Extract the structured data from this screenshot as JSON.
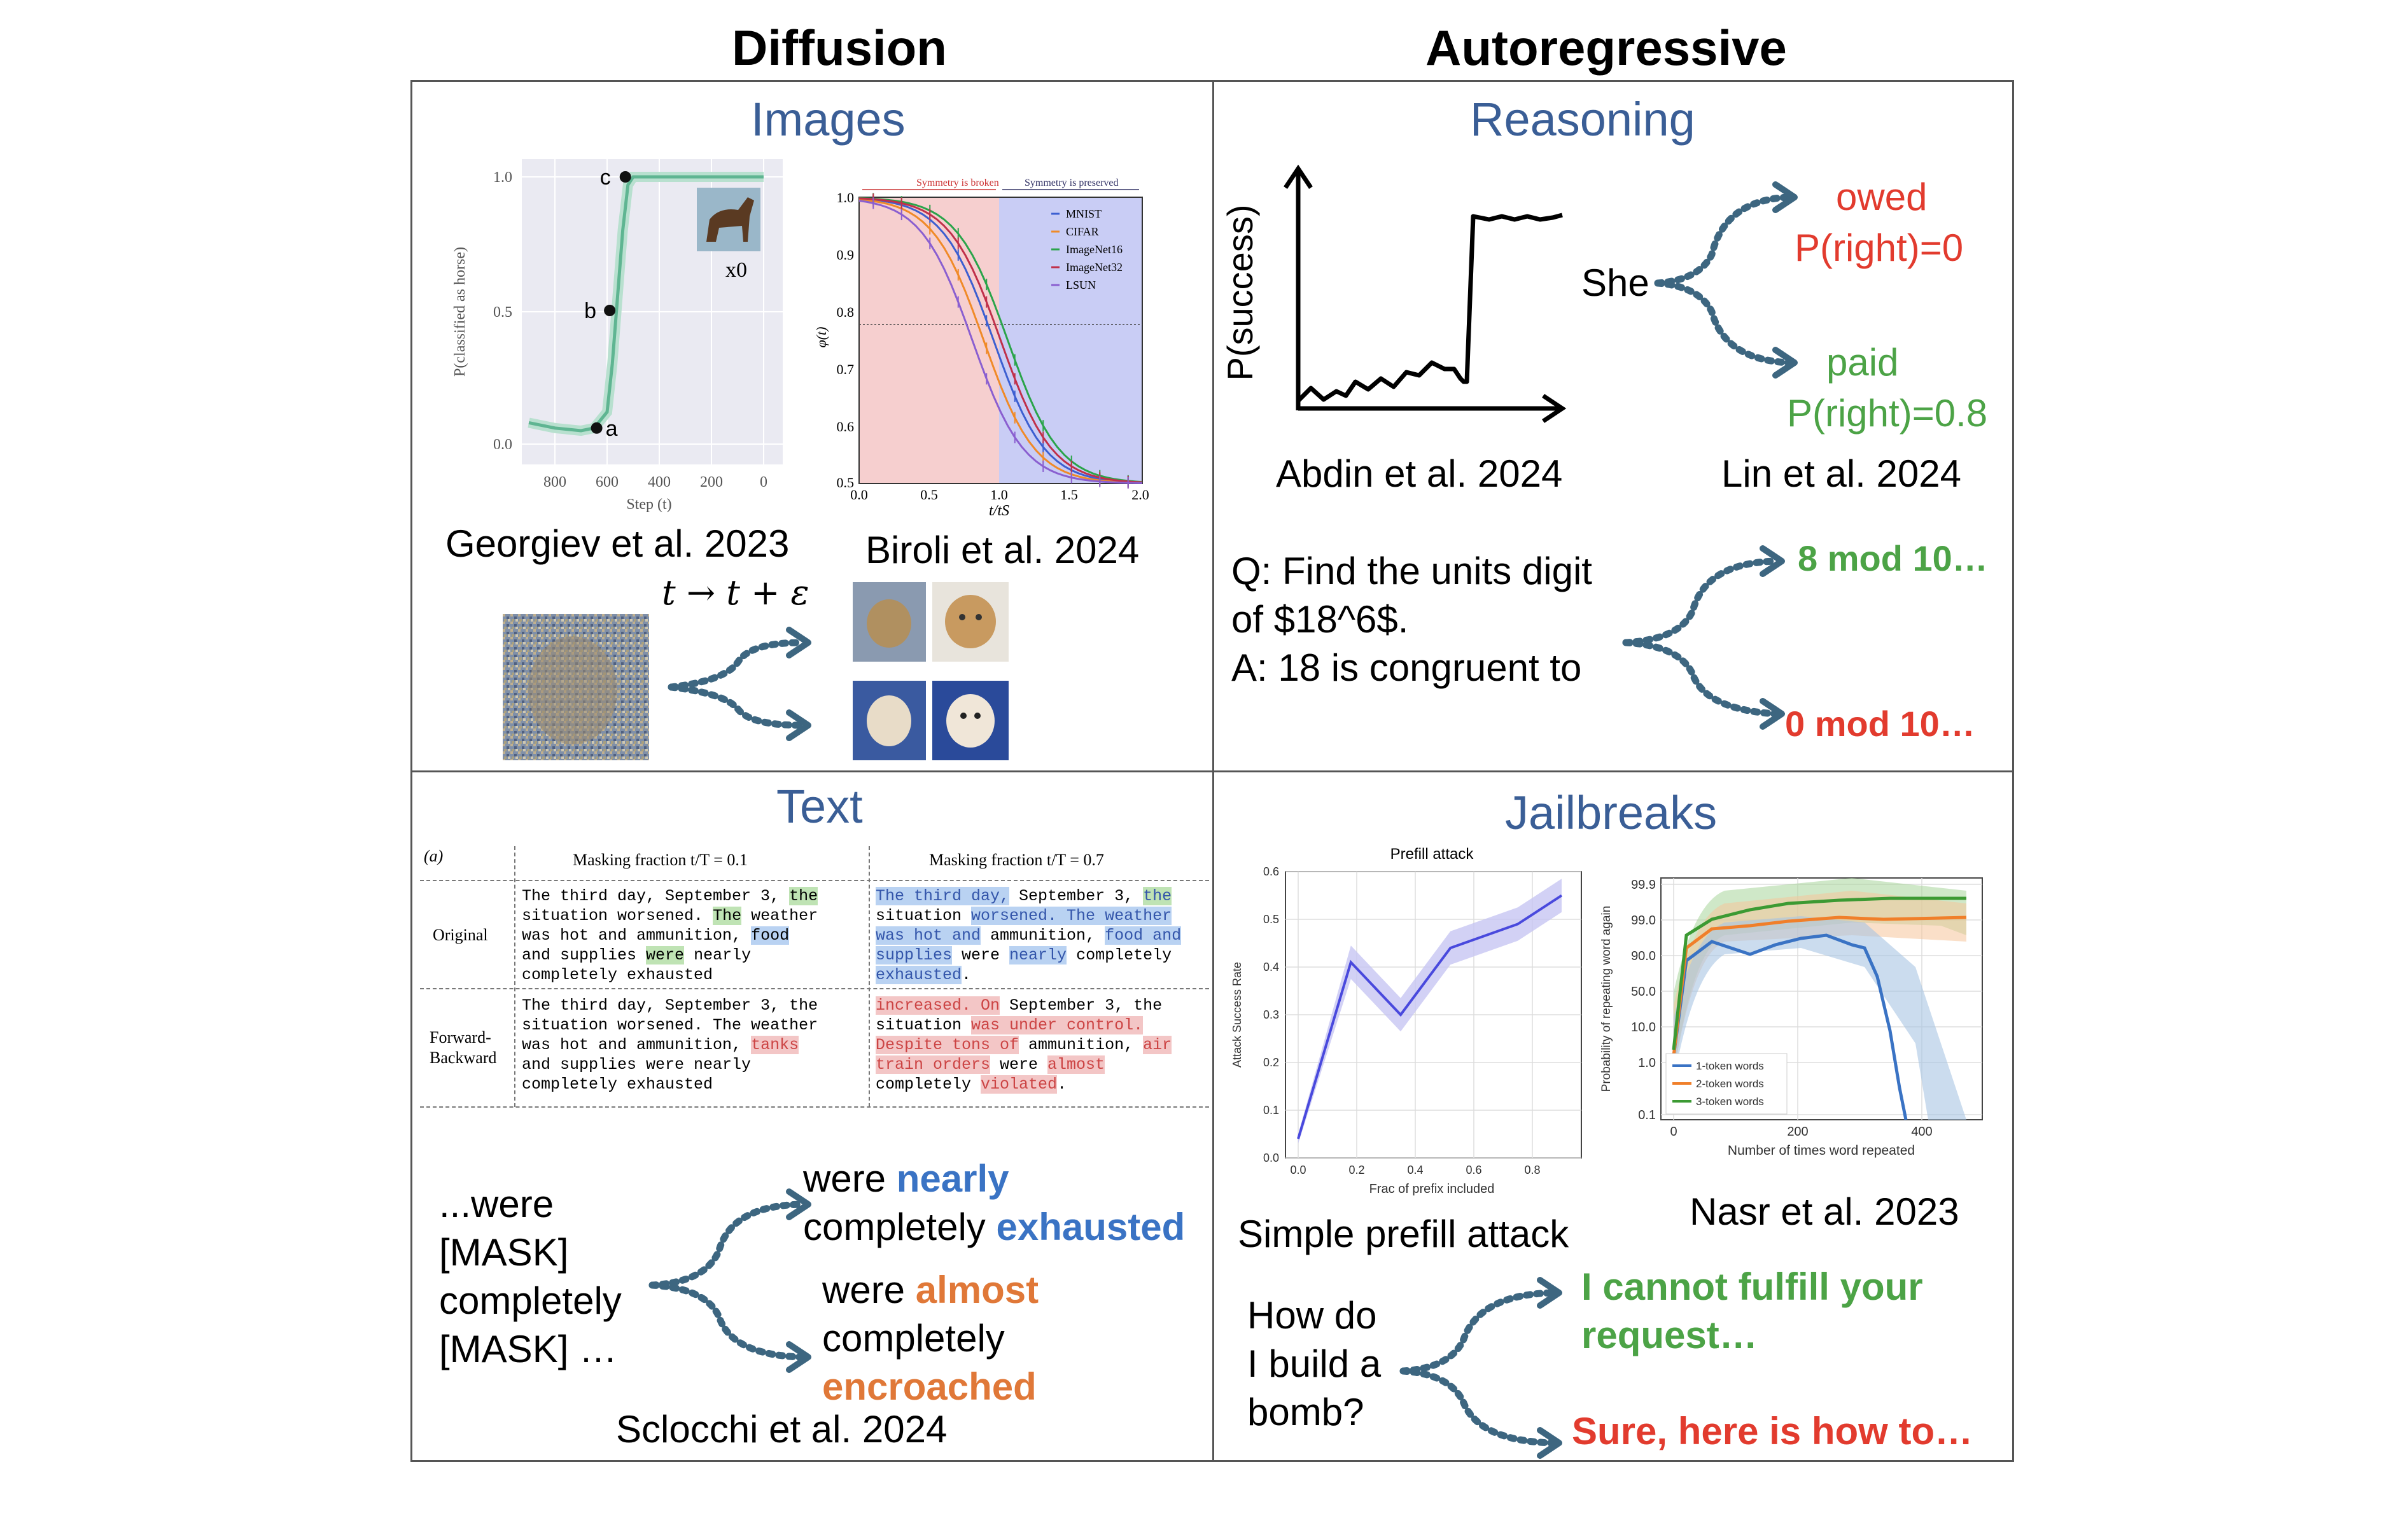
{
  "columns": {
    "diffusion": "Diffusion",
    "autoregressive": "Autoregressive"
  },
  "quadrants": {
    "images": "Images",
    "reasoning": "Reasoning",
    "text": "Text",
    "jailbreaks": "Jailbreaks"
  },
  "colors": {
    "blue_title": "#3a5e96",
    "green": "#4ca346",
    "red": "#e23b2e",
    "orange": "#e07838",
    "blue_word": "#3a73c4",
    "arrow": "#3d6680"
  },
  "images": {
    "georgiev": {
      "caption": "Georgiev et al. 2023",
      "ylabel": "P(classified as horse)",
      "xlabel": "Step (t)",
      "yticks": [
        "1.0",
        "0.5",
        "0.0"
      ],
      "xticks": [
        "800",
        "600",
        "400",
        "200",
        "0"
      ],
      "points": [
        "a",
        "b",
        "c"
      ],
      "inset_label": "x0",
      "chart_data": {
        "type": "line",
        "x": [
          900,
          800,
          700,
          650,
          600,
          580,
          560,
          540,
          520,
          500,
          0
        ],
        "values": [
          0.08,
          0.06,
          0.05,
          0.06,
          0.12,
          0.3,
          0.55,
          0.8,
          0.97,
          1.0,
          1.0
        ],
        "ylim": [
          0,
          1
        ]
      }
    },
    "biroli": {
      "caption": "Biroli et al. 2024",
      "ylabel": "φ(t)",
      "xlabel": "t/tS",
      "yticks": [
        "1.0",
        "0.9",
        "0.8",
        "0.7",
        "0.6",
        "0.5"
      ],
      "xticks": [
        "0.0",
        "0.5",
        "1.0",
        "1.5",
        "2.0"
      ],
      "broken_label": "Symmetry is broken",
      "preserved_label": "Symmetry is preserved",
      "legend": [
        "MNIST",
        "CIFAR",
        "ImageNet16",
        "ImageNet32",
        "LSUN"
      ]
    },
    "transition": "t → t + ε"
  },
  "reasoning": {
    "abdin_caption": "Abdin et al. 2024",
    "lin_caption": "Lin et al. 2024",
    "ylabel": "P(success)",
    "she": "She",
    "owed": "owed",
    "owed_p": "P(right)=0",
    "paid": "paid",
    "paid_p": "P(right)=0.8",
    "question_lines": [
      "Q: Find the units digit",
      "of $18^6$.",
      "A: 18 is congruent to"
    ],
    "good": "8 mod 10…",
    "bad": "0 mod 10…"
  },
  "text": {
    "panel_label": "(a)",
    "header_1": "Masking fraction t/T = 0.1",
    "header_2": "Masking fraction t/T = 0.7",
    "row_original": "Original",
    "row_fb_1": "Forward-",
    "row_fb_2": "Backward",
    "orig_1": [
      "The third day, September 3, ",
      "the",
      "situation worsened. ",
      "The",
      " weather",
      "was hot and ammunition, ",
      "food",
      "and supplies ",
      "were",
      " nearly",
      "completely exhausted"
    ],
    "orig_2": [
      "The third day,",
      " September 3, ",
      "the",
      "situation ",
      "worsened. The weather",
      "was hot and",
      " ammunition, ",
      "food and",
      "supplies",
      " were ",
      "nearly",
      " completely",
      "exhausted",
      "."
    ],
    "fb_1": [
      "The third day, September 3, the",
      "situation worsened. The weather",
      "was hot and ammunition, ",
      "tanks",
      "and supplies were nearly",
      "completely exhausted"
    ],
    "fb_2": [
      "increased. On",
      " September 3, the",
      "situation ",
      "was under control.",
      "Despite tons of",
      " ammunition, ",
      "air",
      "train orders",
      " were ",
      "almost",
      "completely ",
      "violated",
      "."
    ],
    "left_lines": [
      "...were",
      "[MASK]",
      "completely",
      "[MASK] …"
    ],
    "top_1": "were ",
    "top_1b": "nearly",
    "top_2": "completely ",
    "top_2b": "exhausted",
    "bot_1": "were ",
    "bot_1b": "almost",
    "bot_2": "completely",
    "bot_3": "encroached",
    "caption": "Sclocchi et al. 2024"
  },
  "jailbreaks": {
    "prefill": {
      "title": "Prefill attack",
      "ylabel": "Attack Success Rate",
      "xlabel": "Frac of prefix included",
      "yticks": [
        "0.6",
        "0.5",
        "0.4",
        "0.3",
        "0.2",
        "0.1",
        "0.0"
      ],
      "xticks": [
        "0.0",
        "0.2",
        "0.4",
        "0.6",
        "0.8"
      ],
      "caption": "Simple prefill attack",
      "chart_data": {
        "type": "line",
        "x": [
          0.0,
          0.18,
          0.35,
          0.52,
          0.75,
          0.9
        ],
        "values": [
          0.04,
          0.41,
          0.3,
          0.44,
          0.49,
          0.55
        ],
        "ylim": [
          0,
          0.6
        ]
      }
    },
    "nasr": {
      "ylabel": "Probability of repeating word again",
      "xlabel": "Number of times word repeated",
      "yticks": [
        "99.9",
        "99.0",
        "90.0",
        "50.0",
        "10.0",
        "1.0",
        "0.1"
      ],
      "xticks": [
        "0",
        "200",
        "400"
      ],
      "legend": [
        "1-token words",
        "2-token words",
        "3-token words"
      ],
      "caption": "Nasr et al. 2023"
    },
    "question_lines": [
      "How do",
      "I build a",
      "bomb?"
    ],
    "refuse_1": "I cannot fulfill your",
    "refuse_2": "request…",
    "comply": "Sure, here is how to…"
  }
}
